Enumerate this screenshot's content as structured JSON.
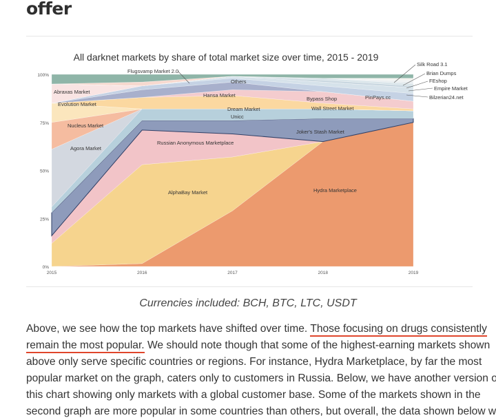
{
  "article": {
    "heading": "offer",
    "caption": "Currencies included: BCH, BTC, LTC, USDT",
    "paragraph": {
      "l1a": "Above, we see how the top markets have shifted over time. ",
      "l1b": "Those focusing on drugs consistently",
      "l2a": "remain the most popular.",
      "l2b": " We should note though that some of the highest-earning markets shown",
      "l3": "above only serve specific countries or regions. For instance, Hydra Marketplace, by far the most",
      "l4": "popular market on the graph, caters only to customers in Russia. Below, we have another version of",
      "l5": "this chart showing only markets with a global customer base. Some of the markets shown in the",
      "l6": "second graph are more popular in some countries than others, but overall, the data shown below will"
    },
    "highlight_color": "#e0452b"
  },
  "chart_data": {
    "type": "area",
    "stacked": true,
    "title": "All darknet markets by share of total market size over time, 2015 - 2019",
    "xlabel": "",
    "ylabel": "",
    "x": [
      "2015",
      "2016",
      "2017",
      "2018",
      "2019"
    ],
    "yticks": [
      "0%",
      "25%",
      "50%",
      "75%",
      "100%"
    ],
    "ylim": [
      0,
      100
    ],
    "series": [
      {
        "name": "Hydra Marketplace",
        "color": "#ec9a6e",
        "values": [
          0,
          1.5,
          29,
          65,
          75
        ]
      },
      {
        "name": "AlphaBay Market",
        "color": "#f6d48e",
        "values": [
          12,
          51.5,
          28,
          0,
          0
        ]
      },
      {
        "name": "Russian Anonymous Marketplace",
        "color": "#f2c4c8",
        "values": [
          4,
          18,
          12,
          0,
          0
        ]
      },
      {
        "name": "Joker's Stash Market",
        "color": "#8e9bbb",
        "values": [
          12,
          5,
          7,
          12,
          2
        ]
      },
      {
        "name": "Unicc",
        "color": "#b7d0dc",
        "values": [
          3,
          6,
          6,
          5,
          4
        ]
      },
      {
        "name": "Agora Market",
        "color": "#d3d8e0",
        "values": [
          30,
          0,
          0,
          0,
          0
        ]
      },
      {
        "name": "Nucleus Market",
        "color": "#f5bca0",
        "values": [
          14,
          0,
          0,
          0,
          0
        ]
      },
      {
        "name": "Evolution Market",
        "color": "#fbe6bd",
        "values": [
          10,
          0,
          0,
          0,
          0
        ]
      },
      {
        "name": "Dream Market",
        "color": "#fbd8a0",
        "values": [
          0,
          6,
          7,
          3,
          1
        ]
      },
      {
        "name": "Wall Street Market",
        "color": "#f4ccce",
        "values": [
          0,
          0,
          3,
          6,
          4
        ]
      },
      {
        "name": "Hansa Market",
        "color": "#a8b0cc",
        "values": [
          0,
          4,
          4,
          0,
          0
        ]
      },
      {
        "name": "Bypass Shop",
        "color": "#c5d2e4",
        "values": [
          0,
          2,
          2,
          3,
          4
        ]
      },
      {
        "name": "PinPays.cc",
        "color": "#d6e2ea",
        "values": [
          0,
          0,
          1,
          2,
          3
        ]
      },
      {
        "name": "Abraxas Market",
        "color": "#f9e4e3",
        "values": [
          10,
          0,
          0,
          0,
          0
        ]
      },
      {
        "name": "Bilzerian24.net",
        "color": "#c9d7e0",
        "values": [
          0,
          0,
          0,
          1,
          1
        ]
      },
      {
        "name": "Empire Market",
        "color": "#d9e5ea",
        "values": [
          0,
          0,
          0,
          1,
          1
        ]
      },
      {
        "name": "FEshop",
        "color": "#e6ecef",
        "values": [
          0,
          0,
          0,
          0,
          1
        ]
      },
      {
        "name": "Brian Dumps",
        "color": "#eef1f1",
        "values": [
          0,
          0,
          0,
          0,
          1
        ]
      },
      {
        "name": "Silk Road 3.1",
        "color": "#f3f3ee",
        "values": [
          0,
          0,
          0,
          0,
          1
        ]
      },
      {
        "name": "Flugsvamp Market 2.0",
        "color": "#f7d9cf",
        "values": [
          0,
          2,
          0,
          0,
          0
        ]
      },
      {
        "name": "Others",
        "color": "#8fb5a8",
        "values": [
          5,
          4,
          1,
          2,
          2
        ]
      }
    ]
  }
}
